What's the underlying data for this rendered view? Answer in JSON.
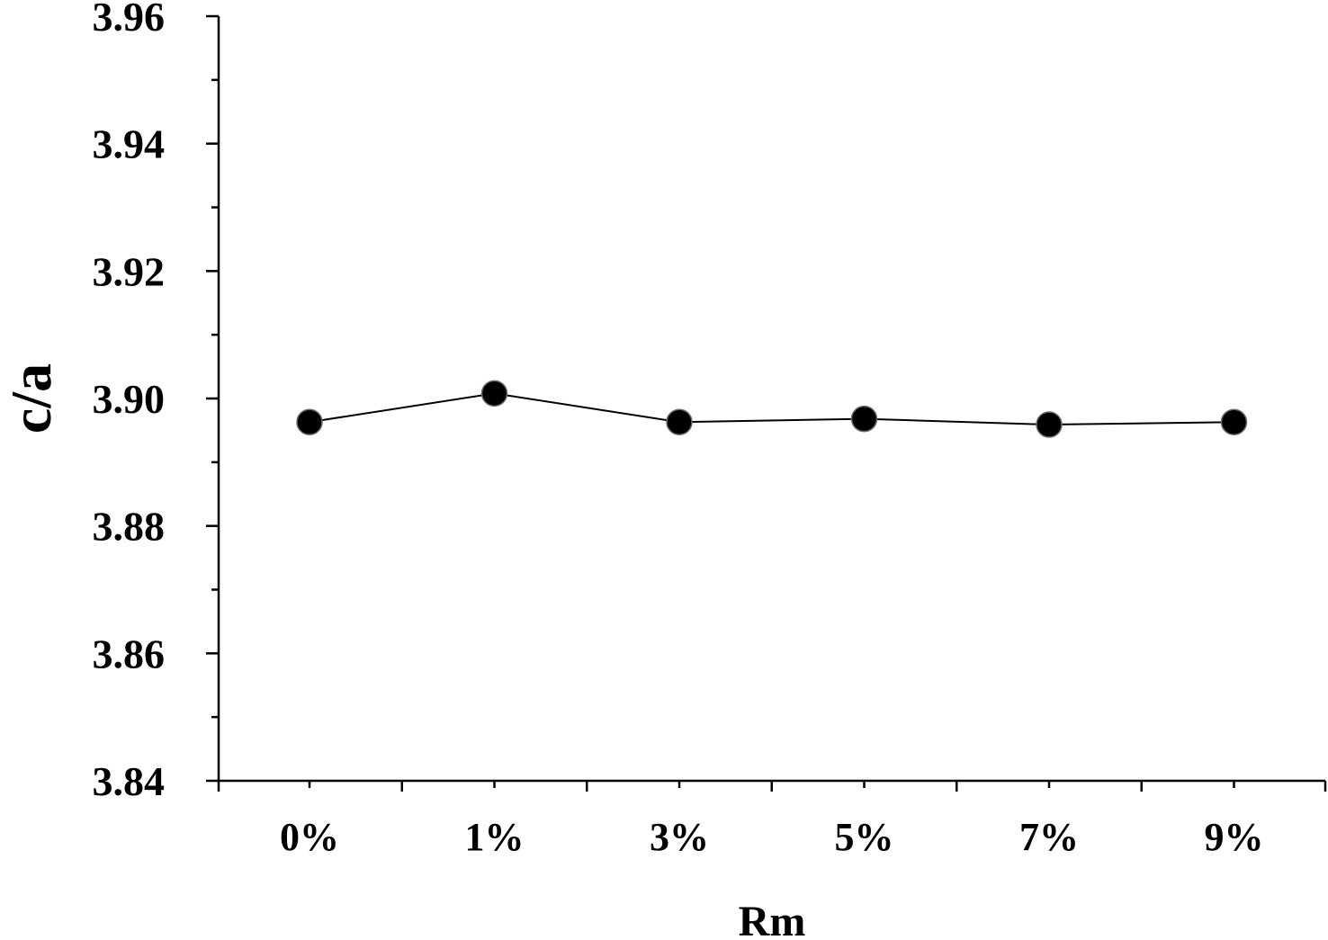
{
  "chart_data": {
    "type": "line",
    "title": "",
    "xlabel": "Rm",
    "ylabel": "c/a",
    "categories": [
      "0%",
      "1%",
      "3%",
      "5%",
      "7%",
      "9%"
    ],
    "series": [
      {
        "values": [
          3.8963,
          3.9008,
          3.8963,
          3.8968,
          3.8959,
          3.8963
        ]
      }
    ],
    "ylim": [
      3.84,
      3.96
    ],
    "yticks": [
      "3.84",
      "3.86",
      "3.88",
      "3.90",
      "3.92",
      "3.94",
      "3.96"
    ],
    "grid": false,
    "legend": "none",
    "marker": "filled-circle",
    "colors": {
      "line": "#000000",
      "marker": "#000000",
      "background": "#ffffff"
    }
  }
}
